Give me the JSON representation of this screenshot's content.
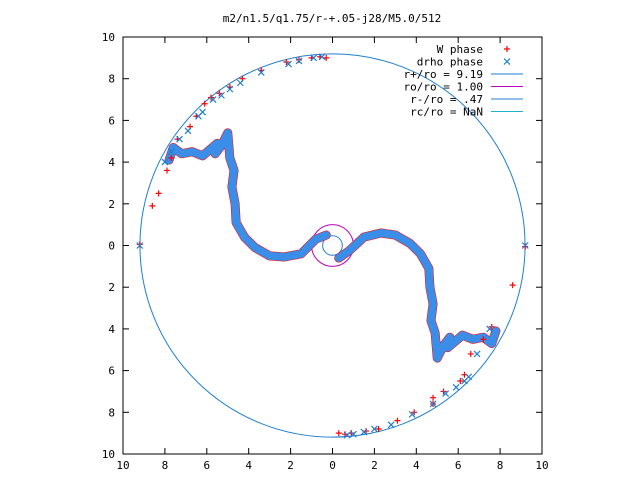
{
  "chart_data": {
    "type": "scatter",
    "title": "m2/n1.5/q1.75/r-+.05-j28/M5.0/512",
    "xlabel": "",
    "ylabel": "",
    "xlim": [
      -10,
      10
    ],
    "ylim": [
      -10,
      10
    ],
    "x_ticks": [
      -10,
      -8,
      -6,
      -4,
      -2,
      0,
      2,
      4,
      6,
      8,
      10
    ],
    "y_ticks": [
      -10,
      -8,
      -6,
      -4,
      -2,
      0,
      2,
      4,
      6,
      8,
      10
    ],
    "x_tick_labels": [
      "10",
      "8",
      "6",
      "4",
      "2",
      "0",
      "2",
      "4",
      "6",
      "8",
      "10"
    ],
    "y_tick_labels": [
      "10",
      "8",
      "6",
      "4",
      "2",
      "0",
      "2",
      "4",
      "6",
      "8",
      "10"
    ],
    "grid": false,
    "legend_position": "top-right",
    "series": [
      {
        "name": "W phase",
        "marker": "plus",
        "color": "#ff0000",
        "points": [
          [
            -9.2,
            0.05
          ],
          [
            -8.6,
            1.9
          ],
          [
            -8.3,
            2.5
          ],
          [
            -7.9,
            3.6
          ],
          [
            -7.7,
            4.2
          ],
          [
            -7.4,
            5.1
          ],
          [
            -6.8,
            5.7
          ],
          [
            -6.5,
            6.2
          ],
          [
            -6.1,
            6.8
          ],
          [
            -5.8,
            7.1
          ],
          [
            -5.4,
            7.3
          ],
          [
            -4.9,
            7.6
          ],
          [
            -4.3,
            8.0
          ],
          [
            -3.4,
            8.4
          ],
          [
            -2.2,
            8.8
          ],
          [
            -1.6,
            8.9
          ],
          [
            -1.0,
            9.0
          ],
          [
            -0.6,
            9.05
          ],
          [
            -0.3,
            9.0
          ],
          [
            9.2,
            -0.05
          ],
          [
            8.6,
            -1.9
          ],
          [
            7.6,
            -3.9
          ],
          [
            7.2,
            -4.5
          ],
          [
            6.6,
            -5.2
          ],
          [
            6.3,
            -6.2
          ],
          [
            6.1,
            -6.5
          ],
          [
            5.3,
            -7.0
          ],
          [
            4.8,
            -7.3
          ],
          [
            4.8,
            -7.6
          ],
          [
            3.9,
            -8.0
          ],
          [
            3.1,
            -8.4
          ],
          [
            2.2,
            -8.8
          ],
          [
            1.6,
            -8.9
          ],
          [
            0.9,
            -9.0
          ],
          [
            0.6,
            -9.05
          ],
          [
            0.3,
            -9.0
          ]
        ]
      },
      {
        "name": "drho phase",
        "marker": "cross",
        "color": "#1f7fd0",
        "points": [
          [
            -9.2,
            0.0
          ],
          [
            -8.0,
            4.0
          ],
          [
            -7.7,
            4.5
          ],
          [
            -7.3,
            5.1
          ],
          [
            -6.9,
            5.5
          ],
          [
            -6.4,
            6.2
          ],
          [
            -6.2,
            6.4
          ],
          [
            -5.7,
            7.0
          ],
          [
            -5.3,
            7.2
          ],
          [
            -4.9,
            7.5
          ],
          [
            -4.4,
            7.8
          ],
          [
            -3.4,
            8.3
          ],
          [
            -2.1,
            8.7
          ],
          [
            -1.6,
            8.85
          ],
          [
            -0.9,
            9.0
          ],
          [
            -0.5,
            9.05
          ],
          [
            9.2,
            0.0
          ],
          [
            7.5,
            -4.0
          ],
          [
            6.9,
            -5.2
          ],
          [
            6.5,
            -6.3
          ],
          [
            6.3,
            -6.5
          ],
          [
            5.9,
            -6.8
          ],
          [
            5.4,
            -7.1
          ],
          [
            4.8,
            -7.6
          ],
          [
            3.8,
            -8.1
          ],
          [
            2.8,
            -8.6
          ],
          [
            2.0,
            -8.8
          ],
          [
            1.5,
            -8.95
          ],
          [
            1.0,
            -9.05
          ],
          [
            0.7,
            -9.1
          ]
        ]
      }
    ],
    "spiral": {
      "arm_upper": [
        [
          -0.3,
          0.5
        ],
        [
          -0.8,
          0.3
        ],
        [
          -1.5,
          -0.4
        ],
        [
          -2.3,
          -0.55
        ],
        [
          -3.0,
          -0.5
        ],
        [
          -3.7,
          -0.1
        ],
        [
          -4.2,
          0.4
        ],
        [
          -4.6,
          1.1
        ],
        [
          -4.65,
          2.0
        ],
        [
          -4.8,
          2.8
        ],
        [
          -4.7,
          3.6
        ],
        [
          -4.9,
          4.2
        ],
        [
          -5.0,
          5.4
        ],
        [
          -5.3,
          4.8
        ],
        [
          -5.6,
          4.4
        ],
        [
          -5.5,
          4.9
        ],
        [
          -6.2,
          4.3
        ],
        [
          -6.7,
          4.5
        ],
        [
          -7.2,
          4.4
        ],
        [
          -7.6,
          4.7
        ],
        [
          -7.8,
          4.1
        ]
      ],
      "arm_lower": [
        [
          0.3,
          -0.6
        ],
        [
          0.8,
          -0.25
        ],
        [
          1.5,
          0.4
        ],
        [
          2.3,
          0.6
        ],
        [
          3.0,
          0.5
        ],
        [
          3.7,
          0.1
        ],
        [
          4.2,
          -0.4
        ],
        [
          4.6,
          -1.1
        ],
        [
          4.65,
          -2.0
        ],
        [
          4.8,
          -2.8
        ],
        [
          4.7,
          -3.6
        ],
        [
          4.9,
          -4.2
        ],
        [
          5.0,
          -5.4
        ],
        [
          5.3,
          -4.8
        ],
        [
          5.6,
          -4.4
        ],
        [
          5.5,
          -4.9
        ],
        [
          6.2,
          -4.3
        ],
        [
          6.7,
          -4.5
        ],
        [
          7.2,
          -4.4
        ],
        [
          7.6,
          -4.7
        ],
        [
          7.8,
          -4.1
        ]
      ]
    },
    "circles": [
      {
        "name": "r+/ro = 9.19",
        "radius": 9.19,
        "color": "#1f7fd0"
      },
      {
        "name": "ro/ro = 1.00",
        "radius": 1.0,
        "color": "#c000c0"
      },
      {
        "name": "r-/ro = .47",
        "radius": 0.47,
        "color": "#1f7fd0"
      },
      {
        "name": "rc/ro = NaN",
        "radius": null,
        "color": "#20b0c8"
      }
    ],
    "legend": [
      {
        "label": "W phase",
        "kind": "point",
        "marker": "plus",
        "color": "#ff0000"
      },
      {
        "label": "drho phase",
        "kind": "point",
        "marker": "cross",
        "color": "#1f7fd0"
      },
      {
        "label": "r+/ro = 9.19",
        "kind": "line",
        "color": "#1f7fd0"
      },
      {
        "label": "ro/ro = 1.00",
        "kind": "line",
        "color": "#c000c0"
      },
      {
        "label": "r-/ro = .47",
        "kind": "line",
        "color": "#1f7fd0"
      },
      {
        "label": "rc/ro = NaN",
        "kind": "line",
        "color": "#20b0c8"
      }
    ]
  }
}
